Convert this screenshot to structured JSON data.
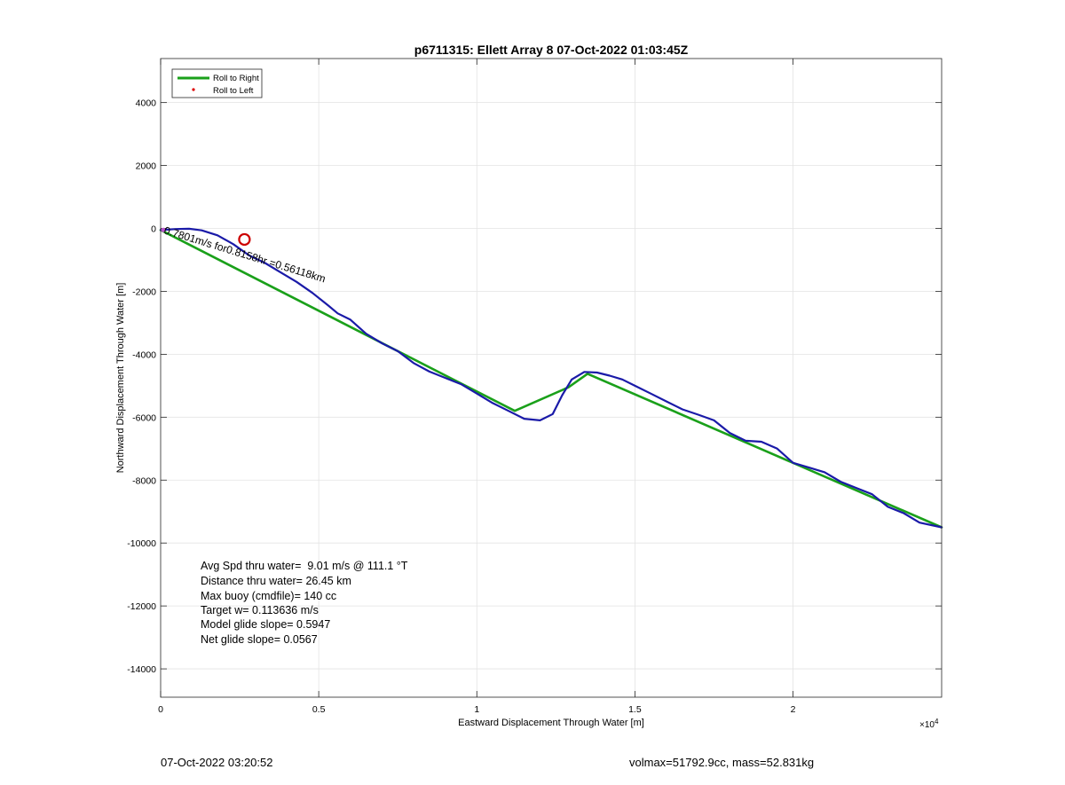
{
  "chart_data": {
    "type": "line",
    "title": "p6711315: Ellett Array 8 07-Oct-2022 01:03:45Z",
    "xlabel": "Eastward Displacement Through Water [m]",
    "ylabel": "Northward Displacement Through Water [m]",
    "x_exponent_label": "×10",
    "x_exponent_power": "4",
    "xlim": [
      0,
      24700
    ],
    "ylim": [
      -14900,
      5400
    ],
    "x_ticks": [
      0,
      5000,
      10000,
      15000,
      20000
    ],
    "x_tick_labels": [
      "0",
      "0.5",
      "1",
      "1.5",
      "2"
    ],
    "y_ticks": [
      4000,
      2000,
      0,
      -2000,
      -4000,
      -6000,
      -8000,
      -10000,
      -12000,
      -14000
    ],
    "y_tick_labels": [
      "4000",
      "2000",
      "0",
      "-2000",
      "-4000",
      "-6000",
      "-8000",
      "-10000",
      "-12000",
      "-14000"
    ],
    "grid": true,
    "legend": {
      "placement": "top-left",
      "entries": [
        {
          "label": "Roll to Right",
          "color": "#1aa01a",
          "marker": "line"
        },
        {
          "label": "Roll to Left",
          "color": "#dd0000",
          "marker": "dot"
        }
      ]
    },
    "series": [
      {
        "name": "Roll to Right",
        "color": "#1aa01a",
        "points": [
          [
            0,
            -50
          ],
          [
            11200,
            -5800
          ],
          [
            12900,
            -5050
          ],
          [
            13500,
            -4620
          ],
          [
            24700,
            -9500
          ]
        ]
      },
      {
        "color": "#1a1aa8",
        "points": [
          [
            0,
            -50
          ],
          [
            200,
            -40
          ],
          [
            500,
            -20
          ],
          [
            900,
            -10
          ],
          [
            1300,
            -60
          ],
          [
            1800,
            -220
          ],
          [
            2300,
            -500
          ],
          [
            2800,
            -860
          ],
          [
            3300,
            -1100
          ],
          [
            3800,
            -1400
          ],
          [
            4300,
            -1700
          ],
          [
            4800,
            -2050
          ],
          [
            5300,
            -2450
          ],
          [
            5600,
            -2700
          ],
          [
            6000,
            -2900
          ],
          [
            6500,
            -3350
          ],
          [
            7000,
            -3650
          ],
          [
            7500,
            -3900
          ],
          [
            8000,
            -4280
          ],
          [
            8500,
            -4550
          ],
          [
            9000,
            -4750
          ],
          [
            9500,
            -4950
          ],
          [
            10000,
            -5250
          ],
          [
            10500,
            -5550
          ],
          [
            11000,
            -5800
          ],
          [
            11500,
            -6050
          ],
          [
            12000,
            -6100
          ],
          [
            12400,
            -5900
          ],
          [
            12700,
            -5300
          ],
          [
            13000,
            -4800
          ],
          [
            13400,
            -4560
          ],
          [
            13800,
            -4580
          ],
          [
            14200,
            -4680
          ],
          [
            14600,
            -4800
          ],
          [
            15000,
            -5000
          ],
          [
            15500,
            -5250
          ],
          [
            16000,
            -5500
          ],
          [
            16500,
            -5750
          ],
          [
            17000,
            -5920
          ],
          [
            17500,
            -6100
          ],
          [
            18000,
            -6500
          ],
          [
            18500,
            -6750
          ],
          [
            19000,
            -6780
          ],
          [
            19500,
            -7000
          ],
          [
            20000,
            -7450
          ],
          [
            20500,
            -7600
          ],
          [
            21000,
            -7750
          ],
          [
            21500,
            -8050
          ],
          [
            22000,
            -8250
          ],
          [
            22500,
            -8450
          ],
          [
            23000,
            -8850
          ],
          [
            23500,
            -9050
          ],
          [
            24000,
            -9350
          ],
          [
            24700,
            -9500
          ]
        ]
      }
    ],
    "annotations": [
      {
        "text": "0.7801m/s for0.8158hr =0.56118km",
        "x": 0,
        "y": -100,
        "rotation": 17
      }
    ],
    "marker": {
      "shape": "circle",
      "x": 2650,
      "y": -350,
      "color": "#cc0000"
    },
    "start_marker": {
      "x": 0,
      "y": -50,
      "color": "#bb55cc"
    },
    "stats": [
      "Avg Spd thru water=  9.01 m/s @ 111.1 °T",
      "Distance thru water= 26.45 km",
      "Max buoy (cmdfile)= 140 cc",
      "Target w= 0.113636 m/s",
      "Model glide slope= 0.5947",
      "Net glide slope= 0.0567"
    ]
  },
  "footer": {
    "timestamp": "07-Oct-2022 03:20:52",
    "summary": "volmax=51792.9cc, mass=52.831kg"
  }
}
